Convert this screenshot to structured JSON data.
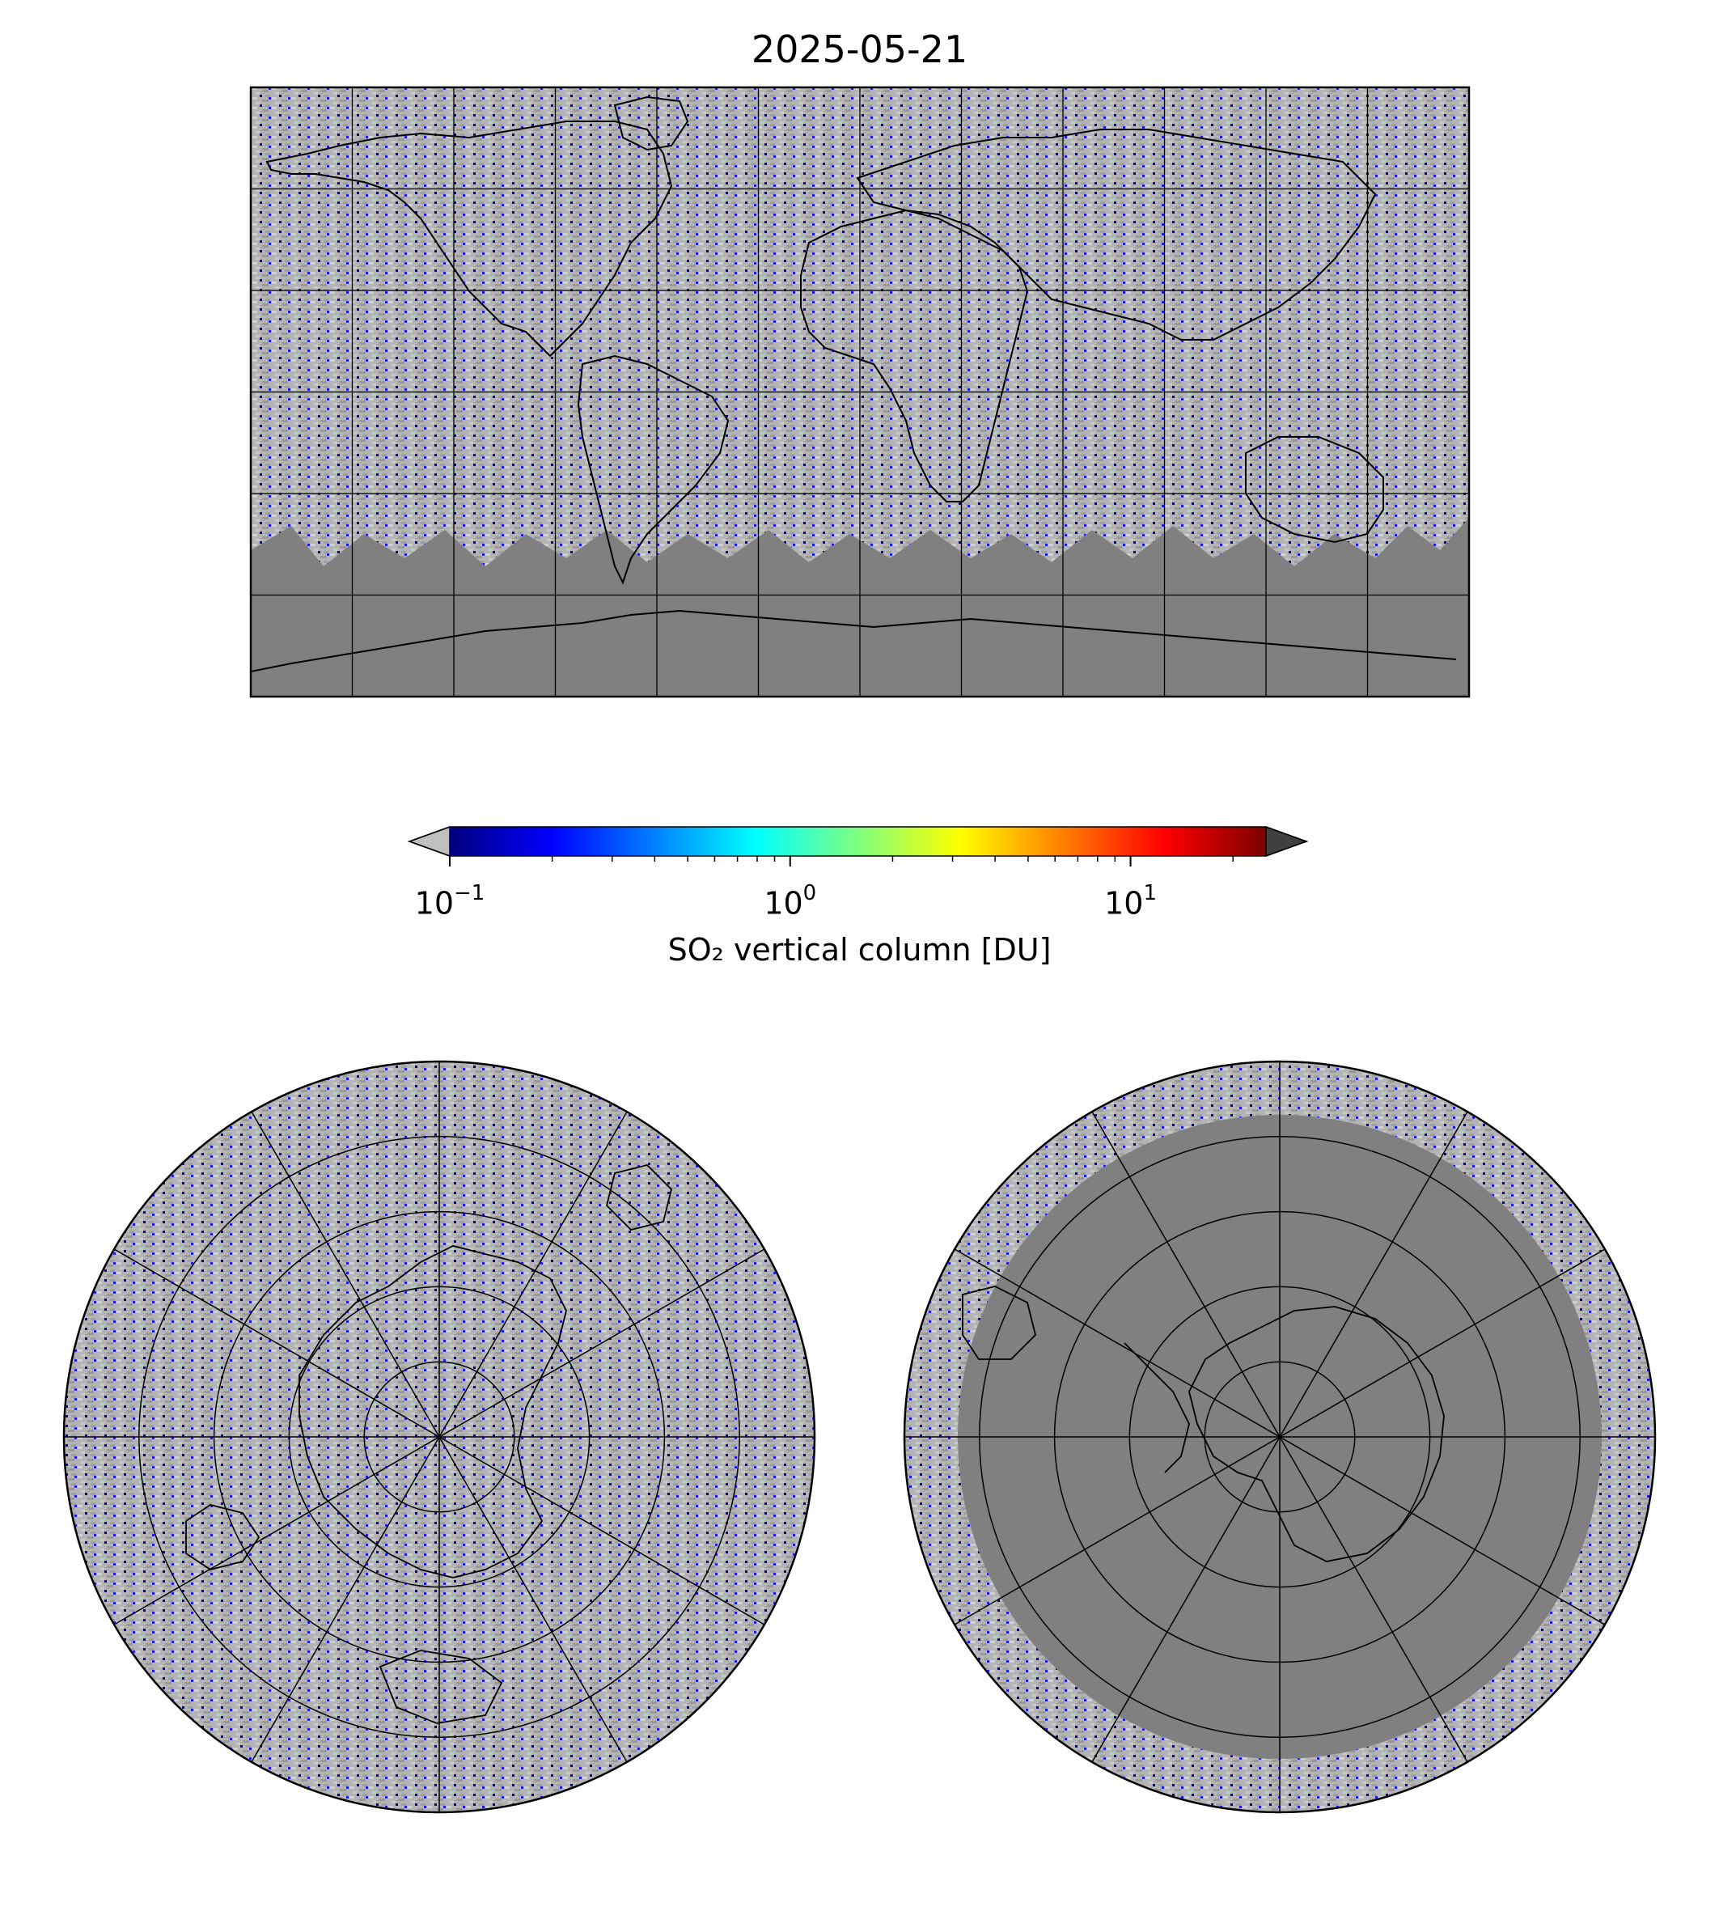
{
  "title": "2025-05-21",
  "colorbar": {
    "label": "SO₂ vertical column [DU]",
    "scale": "log",
    "range": [
      0.1,
      25
    ],
    "ticks": [
      {
        "value": 0.1,
        "base": "10",
        "exp": "−1"
      },
      {
        "value": 1,
        "base": "10",
        "exp": "0"
      },
      {
        "value": 10,
        "base": "10",
        "exp": "1"
      }
    ],
    "extend": "both",
    "under_color": "#c0c0c0",
    "over_color": "#404040",
    "colormap": "jet",
    "colormap_stops": [
      "#00007f",
      "#0000ff",
      "#007fff",
      "#00ffff",
      "#7fff7f",
      "#ffff00",
      "#ff7f00",
      "#ff0000",
      "#7f0000"
    ]
  },
  "maps": [
    {
      "name": "global",
      "projection": "plate-carree",
      "gridlines": {
        "lon_step_deg": 30,
        "lat_step_deg": 30
      }
    },
    {
      "name": "north-polar",
      "projection": "north-polar-stereographic",
      "gridlines": {
        "circles": 4,
        "meridians": 6
      }
    },
    {
      "name": "south-polar",
      "projection": "south-polar-stereographic",
      "gridlines": {
        "circles": 4,
        "meridians": 6
      }
    }
  ],
  "colors": {
    "missing_data": "#808080",
    "background_data": "#c0c0c0",
    "coast": "#000000"
  }
}
